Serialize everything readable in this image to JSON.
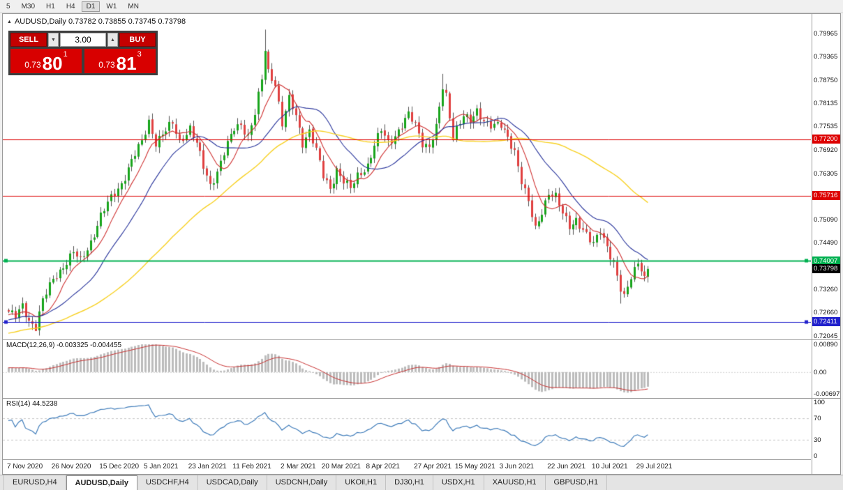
{
  "toolbar": {
    "timeframes": [
      "5",
      "M30",
      "H1",
      "H4",
      "D1",
      "W1",
      "MN"
    ],
    "active": "D1"
  },
  "chart": {
    "title": "AUDUSD,Daily 0.73782 0.73855 0.73745 0.73798",
    "title_marker_icon": "▲"
  },
  "one_click": {
    "sell_label": "SELL",
    "buy_label": "BUY",
    "volume": "3.00",
    "vol_down_icon": "▼",
    "vol_up_icon": "▲",
    "sell_price": {
      "prefix": "0.73",
      "big": "80",
      "sup": "1"
    },
    "buy_price": {
      "prefix": "0.73",
      "big": "81",
      "sup": "3"
    }
  },
  "indicators": {
    "macd": {
      "label": "MACD(12,26,9) -0.003325 -0.004455"
    },
    "rsi": {
      "label": "RSI(14) 44.5238"
    }
  },
  "tabs": {
    "active": "AUDUSD,Daily",
    "items": [
      "EURUSD,H4",
      "AUDUSD,Daily",
      "USDCHF,H4",
      "USDCAD,Daily",
      "USDCNH,Daily",
      "UKOil,H1",
      "DJ30,H1",
      "USDX,H1",
      "XAUUSD,H1",
      "GBPUSD,H1"
    ]
  },
  "chart_data": {
    "type": "candlestick",
    "symbol": "AUDUSD",
    "timeframe": "Daily",
    "ohlc_current": {
      "open": 0.73782,
      "high": 0.73855,
      "low": 0.73745,
      "close": 0.73798
    },
    "price_range": [
      0.7195,
      0.8048
    ],
    "y_axis_labels": [
      "0.79965",
      "0.79365",
      "0.78750",
      "0.78135",
      "0.77535",
      "0.76920",
      "0.76305",
      "0.75690",
      "0.75090",
      "0.74490",
      "0.73875",
      "0.73260",
      "0.72660",
      "0.72045"
    ],
    "x_tick_labels": [
      "7 Nov 2020",
      "26 Nov 2020",
      "15 Dec 2020",
      "5 Jan 2021",
      "23 Jan 2021",
      "11 Feb 2021",
      "2 Mar 2021",
      "20 Mar 2021",
      "8 Apr 2021",
      "27 Apr 2021",
      "15 May 2021",
      "3 Jun 2021",
      "22 Jun 2021",
      "10 Jul 2021",
      "29 Jul 2021"
    ],
    "x_tick_candle_indices": [
      0,
      13,
      27,
      40,
      53,
      66,
      80,
      92,
      105,
      119,
      131,
      144,
      158,
      171,
      184
    ],
    "candle_count": 188,
    "close_anchors": [
      [
        0,
        0.7268
      ],
      [
        2,
        0.7252
      ],
      [
        4,
        0.7282
      ],
      [
        6,
        0.7246
      ],
      [
        8,
        0.7229
      ],
      [
        10,
        0.7296
      ],
      [
        13,
        0.7352
      ],
      [
        16,
        0.7388
      ],
      [
        19,
        0.7422
      ],
      [
        21,
        0.74
      ],
      [
        24,
        0.7452
      ],
      [
        27,
        0.7518
      ],
      [
        30,
        0.7565
      ],
      [
        33,
        0.7605
      ],
      [
        36,
        0.7662
      ],
      [
        39,
        0.7712
      ],
      [
        41,
        0.7768
      ],
      [
        43,
        0.7712
      ],
      [
        46,
        0.774
      ],
      [
        48,
        0.7762
      ],
      [
        50,
        0.7716
      ],
      [
        53,
        0.7748
      ],
      [
        55,
        0.7705
      ],
      [
        57,
        0.7648
      ],
      [
        59,
        0.7602
      ],
      [
        61,
        0.7635
      ],
      [
        63,
        0.7682
      ],
      [
        66,
        0.7748
      ],
      [
        68,
        0.7762
      ],
      [
        70,
        0.7728
      ],
      [
        72,
        0.7785
      ],
      [
        74,
        0.7875
      ],
      [
        75,
        0.7955
      ],
      [
        76,
        0.7898
      ],
      [
        78,
        0.7868
      ],
      [
        80,
        0.7758
      ],
      [
        82,
        0.7822
      ],
      [
        84,
        0.7782
      ],
      [
        86,
        0.7712
      ],
      [
        88,
        0.7742
      ],
      [
        90,
        0.7688
      ],
      [
        92,
        0.7622
      ],
      [
        94,
        0.7592
      ],
      [
        96,
        0.7642
      ],
      [
        98,
        0.7608
      ],
      [
        100,
        0.7588
      ],
      [
        102,
        0.7625
      ],
      [
        105,
        0.7652
      ],
      [
        107,
        0.7702
      ],
      [
        109,
        0.7742
      ],
      [
        111,
        0.7712
      ],
      [
        113,
        0.7732
      ],
      [
        115,
        0.7755
      ],
      [
        117,
        0.7782
      ],
      [
        119,
        0.7756
      ],
      [
        121,
        0.7712
      ],
      [
        123,
        0.7702
      ],
      [
        125,
        0.7748
      ],
      [
        127,
        0.7852
      ],
      [
        128,
        0.7832
      ],
      [
        130,
        0.7728
      ],
      [
        131,
        0.7752
      ],
      [
        133,
        0.7782
      ],
      [
        135,
        0.7762
      ],
      [
        137,
        0.7792
      ],
      [
        139,
        0.7772
      ],
      [
        141,
        0.7758
      ],
      [
        144,
        0.7752
      ],
      [
        146,
        0.7722
      ],
      [
        148,
        0.7692
      ],
      [
        150,
        0.7612
      ],
      [
        152,
        0.7552
      ],
      [
        154,
        0.7482
      ],
      [
        156,
        0.7532
      ],
      [
        158,
        0.7582
      ],
      [
        160,
        0.7568
      ],
      [
        162,
        0.7522
      ],
      [
        164,
        0.7492
      ],
      [
        166,
        0.7512
      ],
      [
        168,
        0.7482
      ],
      [
        170,
        0.7452
      ],
      [
        171,
        0.7442
      ],
      [
        173,
        0.7482
      ],
      [
        175,
        0.7442
      ],
      [
        177,
        0.7392
      ],
      [
        179,
        0.7322
      ],
      [
        180,
        0.7302
      ],
      [
        182,
        0.7362
      ],
      [
        184,
        0.7402
      ],
      [
        185,
        0.7382
      ],
      [
        186,
        0.7352
      ],
      [
        187,
        0.73798
      ]
    ],
    "high_overrides": {
      "75": 0.8007,
      "127": 0.7891
    },
    "low_overrides": {
      "8": 0.7222,
      "179": 0.7289
    },
    "horizontal_levels": [
      {
        "price": 0.772,
        "label": "0.77200",
        "color": "#dd0000",
        "width": 1,
        "end_markers": false
      },
      {
        "price": 0.75716,
        "label": "0.75716",
        "color": "#dd0000",
        "width": 1,
        "end_markers": false
      },
      {
        "price": 0.74007,
        "label": "0.74007",
        "color": "#00b050",
        "width": 2,
        "end_markers": true
      },
      {
        "price": 0.72411,
        "label": "0.72411",
        "color": "#2020cc",
        "width": 1,
        "end_markers": true
      }
    ],
    "current_price_marker": {
      "price": 0.73798,
      "label": "0.73798",
      "bg": "#000000"
    },
    "moving_averages": [
      {
        "name": "fast-ma",
        "period": 8,
        "color": "#cf3030"
      },
      {
        "name": "medium-ma",
        "period": 20,
        "color": "#27339b"
      },
      {
        "name": "slow-ma",
        "period": 55,
        "color": "#f7d021"
      }
    ],
    "macd": {
      "fast": 12,
      "slow": 26,
      "signal": 9,
      "value": -0.003325,
      "signal_value": -0.004455,
      "axis_labels": [
        {
          "text": "0.00890",
          "value": 0.0089
        },
        {
          "text": "0.00",
          "value": 0
        },
        {
          "text": "-0.00697",
          "value": -0.00697
        }
      ],
      "histogram_color": "#bcbcbc",
      "signal_color": "#c83232"
    },
    "rsi": {
      "period": 14,
      "value": 44.5238,
      "levels": [
        70,
        30
      ],
      "color": "#3f7cba",
      "axis_labels": [
        {
          "text": "100",
          "value": 100
        },
        {
          "text": "70",
          "value": 70
        },
        {
          "text": "30",
          "value": 30
        },
        {
          "text": "0",
          "value": 0
        }
      ]
    },
    "colors": {
      "candle_up": "#18a51c",
      "candle_down": "#e04040",
      "wick": "#555555",
      "dashed_level": "#c4c4c4"
    }
  }
}
